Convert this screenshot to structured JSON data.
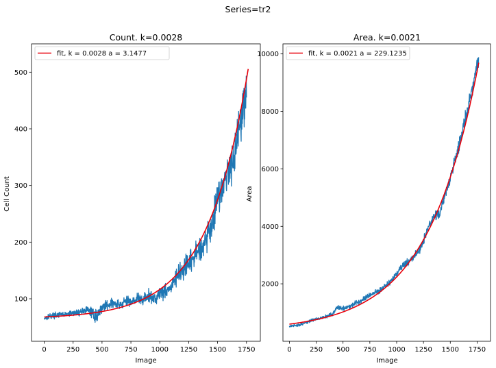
{
  "figure": {
    "suptitle": "Series=tr2"
  },
  "chart_data": [
    {
      "type": "line",
      "title": "Count. k=0.0028",
      "xlabel": "Image",
      "ylabel": "Cell Count",
      "xlim": [
        -110,
        1870
      ],
      "ylim": [
        25,
        550
      ],
      "xticks": [
        0,
        250,
        500,
        750,
        1000,
        1250,
        1500,
        1750
      ],
      "yticks": [
        100,
        200,
        300,
        400,
        500
      ],
      "legend_position": "top-left",
      "series": [
        {
          "color": "#1f77b4",
          "x": [
            0,
            50,
            100,
            150,
            200,
            250,
            300,
            350,
            400,
            450,
            500,
            550,
            600,
            650,
            700,
            750,
            800,
            850,
            900,
            950,
            1000,
            1050,
            1100,
            1150,
            1200,
            1250,
            1300,
            1350,
            1400,
            1450,
            1500,
            1550,
            1600,
            1650,
            1700,
            1750
          ],
          "y": [
            66,
            70,
            71,
            72,
            73,
            75,
            76,
            80,
            78,
            68,
            85,
            90,
            92,
            88,
            95,
            96,
            100,
            98,
            105,
            100,
            110,
            115,
            120,
            140,
            150,
            160,
            175,
            190,
            205,
            230,
            280,
            300,
            330,
            360,
            420,
            460
          ],
          "noise": [
            8,
            8,
            7,
            7,
            7,
            8,
            8,
            10,
            12,
            18,
            12,
            12,
            14,
            14,
            15,
            15,
            16,
            16,
            18,
            18,
            20,
            20,
            22,
            24,
            26,
            28,
            30,
            32,
            35,
            38,
            40,
            45,
            50,
            55,
            60,
            65
          ]
        },
        {
          "name": "fit, k = 0.0028 a = 3.1477",
          "color": "#e8000b",
          "fit": {
            "k": 0.0028,
            "a": 3.1477,
            "c": 64.8
          },
          "x_range": [
            0,
            1765
          ]
        }
      ]
    },
    {
      "type": "line",
      "title": "Area. k=0.0021",
      "xlabel": "Image",
      "ylabel": "Area",
      "xlim": [
        -60,
        1875
      ],
      "ylim": [
        0,
        10350
      ],
      "xticks": [
        0,
        250,
        500,
        750,
        1000,
        1250,
        1500,
        1750
      ],
      "yticks": [
        2000,
        4000,
        6000,
        8000,
        10000
      ],
      "legend_position": "top-left",
      "series": [
        {
          "color": "#1f77b4",
          "x": [
            0,
            50,
            100,
            150,
            200,
            250,
            300,
            350,
            400,
            450,
            500,
            550,
            600,
            650,
            700,
            750,
            800,
            850,
            900,
            950,
            1000,
            1050,
            1100,
            1150,
            1200,
            1250,
            1300,
            1350,
            1400,
            1450,
            1500,
            1550,
            1600,
            1650,
            1700,
            1750,
            1765
          ],
          "y": [
            520,
            540,
            580,
            640,
            720,
            780,
            820,
            870,
            950,
            1180,
            1150,
            1200,
            1300,
            1380,
            1500,
            1600,
            1700,
            1800,
            1950,
            2100,
            2350,
            2600,
            2750,
            2900,
            3100,
            3500,
            4000,
            4350,
            4400,
            5100,
            5700,
            6400,
            7100,
            7900,
            8700,
            9600,
            9900
          ],
          "noise": [
            60,
            60,
            70,
            70,
            80,
            80,
            80,
            90,
            100,
            110,
            110,
            120,
            120,
            130,
            130,
            140,
            140,
            150,
            150,
            160,
            160,
            170,
            180,
            190,
            200,
            220,
            240,
            250,
            260,
            280,
            300,
            320,
            340,
            360,
            380,
            400,
            420
          ]
        },
        {
          "name": "fit, k = 0.0021 a = 229.1235",
          "color": "#e8000b",
          "fit": {
            "k": 0.0021,
            "a": 229.1235,
            "c": 367
          },
          "x_range": [
            0,
            1765
          ]
        }
      ]
    }
  ]
}
